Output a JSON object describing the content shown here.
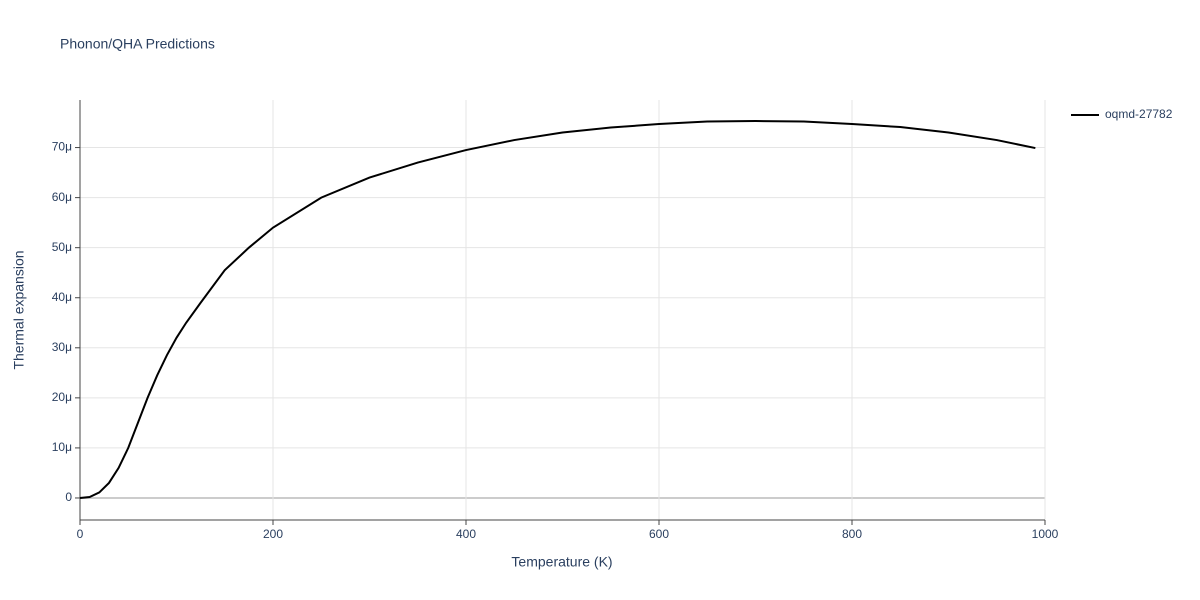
{
  "chart_data": {
    "type": "line",
    "title": "Phonon/QHA Predictions",
    "x_label": "Temperature (K)",
    "y_label": "Thermal expansion",
    "x": [
      0,
      10,
      20,
      30,
      40,
      50,
      60,
      70,
      80,
      90,
      100,
      110,
      125,
      150,
      175,
      200,
      250,
      300,
      350,
      400,
      450,
      500,
      550,
      600,
      650,
      700,
      750,
      800,
      850,
      900,
      950,
      990
    ],
    "series": [
      {
        "name": "oqmd-27782",
        "color": "#000000",
        "values": [
          0,
          0.2,
          1.1,
          3,
          6,
          10,
          15,
          20,
          24.5,
          28.5,
          32,
          35,
          39,
          45.5,
          50,
          54,
          60,
          64,
          67,
          69.5,
          71.5,
          73,
          74,
          74.7,
          75.2,
          75.3,
          75.2,
          74.7,
          74.1,
          73,
          71.5,
          69.9
        ]
      }
    ],
    "xlim": [
      0,
      1000
    ],
    "xticks": [
      0,
      200,
      400,
      600,
      800,
      1000
    ],
    "ylim": [
      -4.4,
      79.5
    ],
    "yticks": [
      0,
      {
        "value": 10,
        "label": "10μ"
      },
      {
        "value": 20,
        "label": "20μ"
      },
      {
        "value": 30,
        "label": "30μ"
      },
      {
        "value": 40,
        "label": "40μ"
      },
      {
        "value": 50,
        "label": "50μ"
      },
      {
        "value": 60,
        "label": "60μ"
      },
      {
        "value": 70,
        "label": "70μ"
      }
    ],
    "grid": true,
    "legend": "right"
  }
}
